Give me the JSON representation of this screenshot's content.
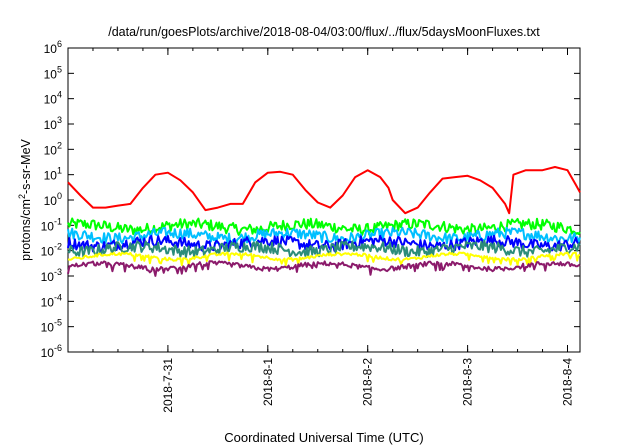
{
  "chart_data": {
    "type": "line",
    "title": "/data/run/goesPlots/archive/2018-08-04/03:00/flux/../flux/5daysMoonFluxes.txt",
    "xlabel": "Coordinated Universal Time (UTC)",
    "ylabel_parts": [
      "protons/cm",
      "2",
      "-s-sr-MeV"
    ],
    "y_scale": "log",
    "ylim": [
      1e-06,
      1000000.0
    ],
    "xlim": [
      "2018-07-30T00:00",
      "2018-08-04T03:00"
    ],
    "y_ticks": [
      {
        "value": 1e-06,
        "base": "10",
        "exp": "-6"
      },
      {
        "value": 1e-05,
        "base": "10",
        "exp": "-5"
      },
      {
        "value": 0.0001,
        "base": "10",
        "exp": "-4"
      },
      {
        "value": 0.001,
        "base": "10",
        "exp": "-3"
      },
      {
        "value": 0.01,
        "base": "10",
        "exp": "-2"
      },
      {
        "value": 0.1,
        "base": "10",
        "exp": "-1"
      },
      {
        "value": 1,
        "base": "10",
        "exp": "0"
      },
      {
        "value": 10,
        "base": "10",
        "exp": "1"
      },
      {
        "value": 100,
        "base": "10",
        "exp": "2"
      },
      {
        "value": 1000,
        "base": "10",
        "exp": "3"
      },
      {
        "value": 10000,
        "base": "10",
        "exp": "4"
      },
      {
        "value": 100000,
        "base": "10",
        "exp": "5"
      },
      {
        "value": 1000000,
        "base": "10",
        "exp": "6"
      }
    ],
    "x_ticks": [
      {
        "value": "2018-07-31T00:00",
        "label": "2018-7-31"
      },
      {
        "value": "2018-08-01T00:00",
        "label": "2018-8-1"
      },
      {
        "value": "2018-08-02T00:00",
        "label": "2018-8-2"
      },
      {
        "value": "2018-08-03T00:00",
        "label": "2018-8-3"
      },
      {
        "value": "2018-08-04T00:00",
        "label": "2018-8-4"
      }
    ],
    "series": [
      {
        "color": "#ff0000",
        "x": [
          "2018-07-30T00:00",
          "2018-07-30T03:00",
          "2018-07-30T06:00",
          "2018-07-30T09:00",
          "2018-07-30T12:00",
          "2018-07-30T15:00",
          "2018-07-30T18:00",
          "2018-07-30T21:00",
          "2018-07-31T00:00",
          "2018-07-31T03:00",
          "2018-07-31T06:00",
          "2018-07-31T09:00",
          "2018-07-31T12:00",
          "2018-07-31T15:00",
          "2018-07-31T18:00",
          "2018-07-31T21:00",
          "2018-08-01T00:00",
          "2018-08-01T03:00",
          "2018-08-01T06:00",
          "2018-08-01T09:00",
          "2018-08-01T12:00",
          "2018-08-01T15:00",
          "2018-08-01T18:00",
          "2018-08-01T21:00",
          "2018-08-02T00:00",
          "2018-08-02T03:00",
          "2018-08-02T05:00",
          "2018-08-02T06:00",
          "2018-08-02T09:00",
          "2018-08-02T12:00",
          "2018-08-02T15:00",
          "2018-08-02T18:00",
          "2018-08-02T21:00",
          "2018-08-03T00:00",
          "2018-08-03T03:00",
          "2018-08-03T06:00",
          "2018-08-03T09:00",
          "2018-08-03T10:00",
          "2018-08-03T11:00",
          "2018-08-03T14:00",
          "2018-08-03T18:00",
          "2018-08-03T21:00",
          "2018-08-04T00:00",
          "2018-08-04T02:00",
          "2018-08-04T03:00"
        ],
        "values": [
          5,
          1.5,
          0.5,
          0.5,
          0.6,
          0.7,
          3,
          10,
          12,
          6,
          2,
          0.4,
          0.5,
          0.7,
          0.7,
          5,
          12,
          13,
          10,
          2.5,
          0.8,
          0.5,
          1.5,
          8,
          15,
          8,
          3,
          1,
          0.3,
          0.5,
          2,
          7,
          8,
          9,
          6,
          3,
          0.7,
          0.3,
          10,
          15,
          15,
          20,
          15,
          4,
          2
        ]
      },
      {
        "color": "#00ff00",
        "base": 0.09
      },
      {
        "color": "#00bfff",
        "base": 0.04
      },
      {
        "color": "#0000ff",
        "base": 0.02
      },
      {
        "color": "#2c8c7a",
        "base": 0.012
      },
      {
        "color": "#ffff00",
        "base": 0.006
      },
      {
        "color": "#8b1a6b",
        "base": 0.0025
      }
    ]
  }
}
